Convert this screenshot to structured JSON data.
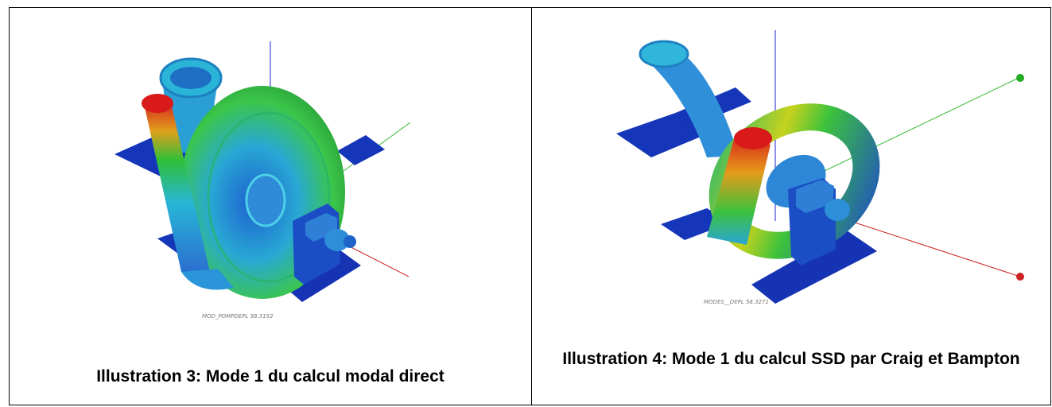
{
  "figures": [
    {
      "caption": "Illustration 3: Mode 1 du calcul modal direct",
      "render_label": "MOD_POMPDEPL 58.3192",
      "mode_colors": {
        "high": "#d32020",
        "mid": "#2fc12f",
        "low": "#1035b8",
        "cyan": "#2ab8d8"
      }
    },
    {
      "caption": "Illustration 4: Mode 1 du calcul SSD par Craig et Bampton",
      "render_label": "MODES__DEPL 58.3271",
      "mode_colors": {
        "high": "#d32020",
        "mid": "#2fc12f",
        "low": "#1035b8",
        "cyan": "#2ab8d8"
      }
    }
  ]
}
